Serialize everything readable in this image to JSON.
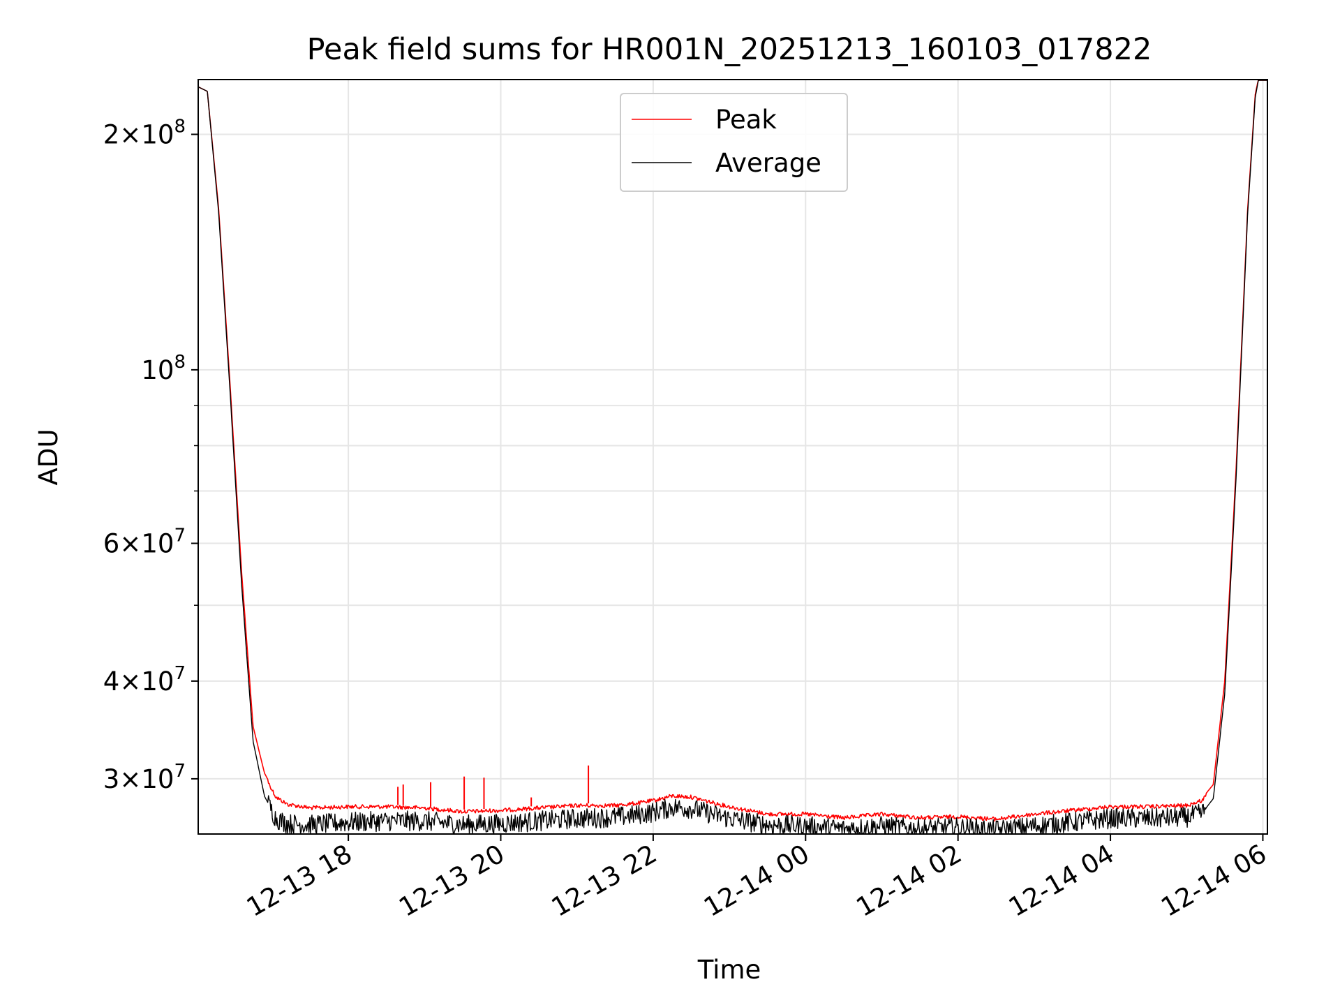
{
  "chart_data": {
    "type": "line",
    "title": "Peak field sums for HR001N_20251213_160103_017822",
    "xlabel": "Time",
    "ylabel": "ADU",
    "yscale": "log",
    "grid": true,
    "legend_position": "upper center",
    "xlim_hours": [
      16.03,
      30.06
    ],
    "ylim": [
      25500000,
      235000000
    ],
    "x_ticks": [
      {
        "hours": 18,
        "label": "12-13 18"
      },
      {
        "hours": 20,
        "label": "12-13 20"
      },
      {
        "hours": 22,
        "label": "12-13 22"
      },
      {
        "hours": 24,
        "label": "12-14 00"
      },
      {
        "hours": 26,
        "label": "12-14 02"
      },
      {
        "hours": 28,
        "label": "12-14 04"
      },
      {
        "hours": 30,
        "label": "12-14 06"
      }
    ],
    "y_major_ticks": [
      {
        "value": 30000000,
        "mant": "3",
        "exp": "7"
      },
      {
        "value": 40000000,
        "mant": "4",
        "exp": "7"
      },
      {
        "value": 60000000,
        "mant": "6",
        "exp": "7"
      },
      {
        "value": 100000000,
        "mant": "",
        "exp": "8"
      },
      {
        "value": 200000000,
        "mant": "2",
        "exp": "8"
      }
    ],
    "y_minor_ticks": [
      50000000,
      70000000,
      80000000,
      90000000
    ],
    "x_hours": [
      16.03,
      16.15,
      16.3,
      16.45,
      16.6,
      16.75,
      16.9,
      17.05,
      17.2,
      17.5,
      18.0,
      18.5,
      19.0,
      19.5,
      20.0,
      20.5,
      21.0,
      21.5,
      21.8,
      22.0,
      22.25,
      22.5,
      22.8,
      23.0,
      23.5,
      24.0,
      24.5,
      25.0,
      25.5,
      26.0,
      26.5,
      27.0,
      27.5,
      28.0,
      28.5,
      29.0,
      29.2,
      29.35,
      29.5,
      29.65,
      29.8,
      29.9,
      29.96
    ],
    "series": [
      {
        "name": "Peak",
        "color": "#ff0000",
        "values": [
          230000000,
          227000000,
          160000000,
          95000000,
          55000000,
          35000000,
          30500000,
          28600000,
          28000000,
          27700000,
          27800000,
          27800000,
          27700000,
          27400000,
          27500000,
          27700000,
          27900000,
          27900000,
          28100000,
          28300000,
          28700000,
          28600000,
          28100000,
          27800000,
          27200000,
          27200000,
          26900000,
          27200000,
          26900000,
          27000000,
          26800000,
          27200000,
          27500000,
          27800000,
          27800000,
          27900000,
          28300000,
          29500000,
          40000000,
          75000000,
          160000000,
          225000000,
          240000000
        ],
        "spikes": [
          {
            "hours": 19.08,
            "value": 29700000
          },
          {
            "hours": 19.52,
            "value": 30200000
          },
          {
            "hours": 19.78,
            "value": 30100000
          },
          {
            "hours": 21.15,
            "value": 31200000
          },
          {
            "hours": 18.72,
            "value": 29500000
          },
          {
            "hours": 18.65,
            "value": 29300000
          },
          {
            "hours": 20.4,
            "value": 28400000
          }
        ]
      },
      {
        "name": "Average",
        "color": "#000000",
        "values": [
          230000000,
          227000000,
          158000000,
          93000000,
          53000000,
          33500000,
          28500000,
          26700000,
          26300000,
          26200000,
          26400000,
          26500000,
          26500000,
          26200000,
          26300000,
          26500000,
          26700000,
          26800000,
          27000000,
          27200000,
          27600000,
          27500000,
          27000000,
          26700000,
          26200000,
          26100000,
          25900000,
          26100000,
          25900000,
          26000000,
          25800000,
          26100000,
          26400000,
          26700000,
          26700000,
          26800000,
          27100000,
          28300000,
          38500000,
          73000000,
          158000000,
          223000000,
          240000000
        ]
      }
    ]
  }
}
